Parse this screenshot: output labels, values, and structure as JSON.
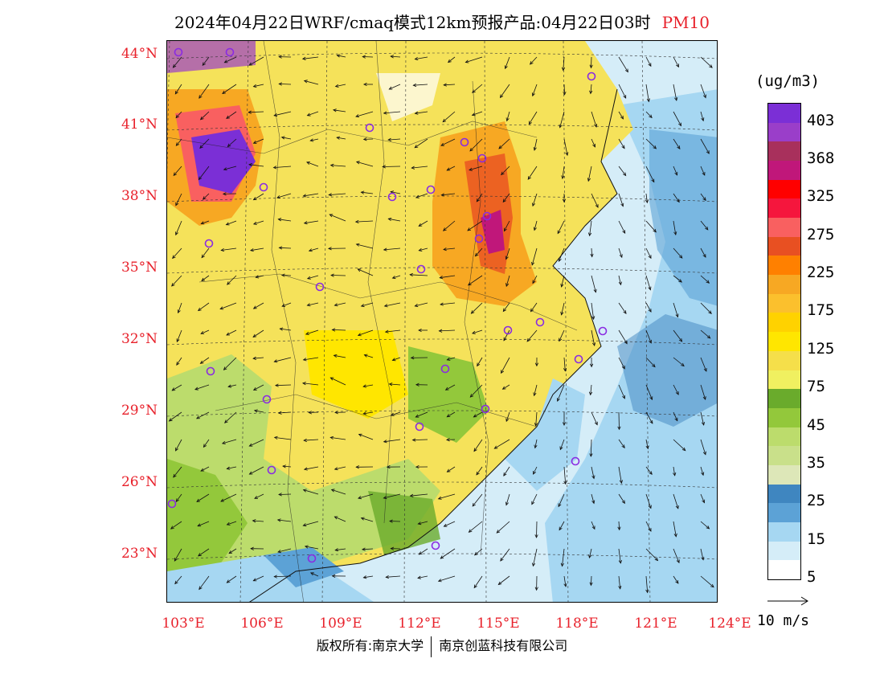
{
  "header": {
    "title": "2024年04月22日WRF/cmaq模式12km预报产品:04月22日03时",
    "pollutant": "PM10"
  },
  "axes": {
    "lat_labels": [
      "44°N",
      "41°N",
      "38°N",
      "35°N",
      "32°N",
      "29°N",
      "26°N",
      "23°N"
    ],
    "lon_labels": [
      "103°E",
      "106°E",
      "109°E",
      "112°E",
      "115°E",
      "118°E",
      "121°E",
      "124°E"
    ]
  },
  "colorbar": {
    "unit": "(ug/m3)",
    "labels": [
      "403",
      "368",
      "325",
      "275",
      "225",
      "175",
      "125",
      "75",
      "45",
      "35",
      "25",
      "15",
      "5"
    ],
    "colors": [
      "#7b2fd6",
      "#9a3ec9",
      "#a8305c",
      "#c0177a",
      "#ff0000",
      "#f5163d",
      "#f96060",
      "#e85022",
      "#ff8000",
      "#f7a823",
      "#fbc02d",
      "#ffd200",
      "#ffe600",
      "#f5df4a",
      "#f0f060",
      "#6aab2c",
      "#93c83b",
      "#bcdc6c",
      "#c9e08a",
      "#dde7b8",
      "#3f86c0",
      "#5ca2d6",
      "#a6d7f2",
      "#d5edf8",
      "#ffffff"
    ]
  },
  "wind": {
    "reference_label": "10 m/s"
  },
  "footer": {
    "copyright_left": "版权所有:南京大学",
    "copyright_right": "南京创蓝科技有限公司"
  },
  "map": {
    "land_color": "#f5e25a",
    "sea_color": "#d8eef8"
  }
}
